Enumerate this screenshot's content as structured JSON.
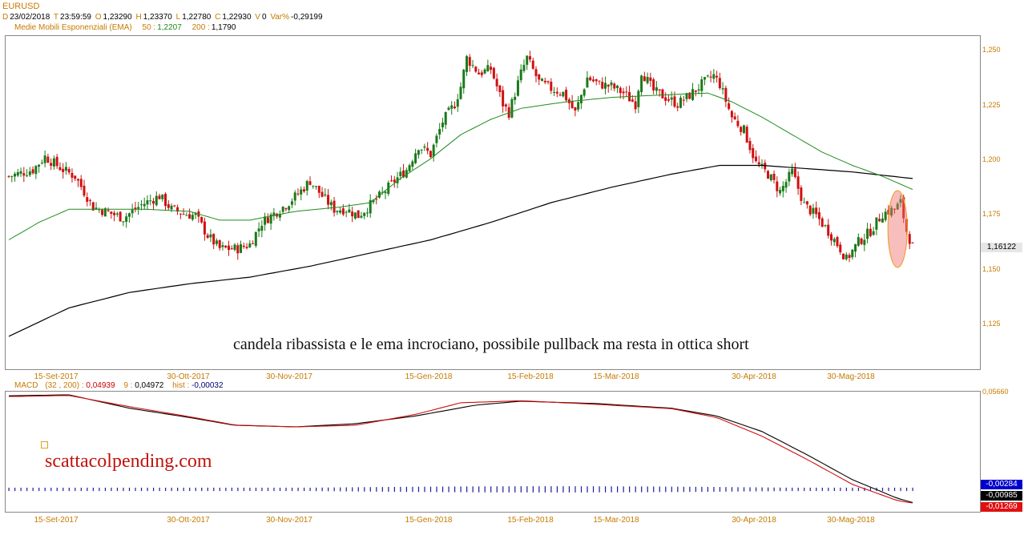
{
  "header": {
    "symbol": "EURUSD",
    "d_label": "D",
    "date": "23/02/2018",
    "t_label": "T",
    "time": "23:59:59",
    "o_label": "O",
    "open": "1,23290",
    "h_label": "H",
    "high": "1,23370",
    "l_label": "L",
    "low": "1,22780",
    "c_label": "C",
    "close": "1,22930",
    "v_label": "V",
    "volume": "0",
    "var_label": "Var%",
    "var": "-0,29199",
    "ema_label": "Medie Mobili Esponenziali (EMA)",
    "ema50_label": "50 :",
    "ema50": "1,2207",
    "ema200_label": "200 :",
    "ema200": "1,1790"
  },
  "annotation": "candela ribassista e le ema incrociano, possibile pullback ma resta in ottica short",
  "watermark": "scattacolpending.com",
  "price_tag": "1,16122",
  "macd_header": {
    "label": "MACD",
    "params": "(32 , 200) :",
    "macd": "0,04939",
    "signal_label": "9 :",
    "signal": "0,04972",
    "hist_label": "hist :",
    "hist": "-0,00032"
  },
  "macd_tags": [
    "-0,00284",
    "-0,00985",
    "-0,01269"
  ],
  "macd_axis_top": "0,05660",
  "x_labels": [
    "15-Set-2017",
    "30-Ott-2017",
    "30-Nov-2017",
    "15-Gen-2018",
    "15-Feb-2018",
    "15-Mar-2018",
    "30-Apr-2018",
    "30-Mag-2018"
  ],
  "colors": {
    "accent": "#c57a00",
    "up": "#1a7a1a",
    "down": "#d01010",
    "ema50": "#1e8c1e",
    "ema200": "#000000",
    "macd": "#000000",
    "signal": "#d01010",
    "hist": "#1a1aa0"
  },
  "chart_data": [
    {
      "type": "candlestick",
      "title": "EURUSD",
      "ylim": [
        1.105,
        1.257
      ],
      "y_ticks": [
        "1,250",
        "1,225",
        "1,200",
        "1,175",
        "1,150",
        "1,125"
      ],
      "x_ticks": [
        "15-Set-2017",
        "30-Ott-2017",
        "30-Nov-2017",
        "15-Gen-2018",
        "15-Feb-2018",
        "15-Mar-2018",
        "30-Apr-2018",
        "30-Mag-2018"
      ],
      "close_path": [
        [
          0,
          1.193
        ],
        [
          8,
          1.196
        ],
        [
          12,
          1.202
        ],
        [
          18,
          1.196
        ],
        [
          22,
          1.193
        ],
        [
          28,
          1.179
        ],
        [
          34,
          1.176
        ],
        [
          38,
          1.174
        ],
        [
          44,
          1.18
        ],
        [
          50,
          1.184
        ],
        [
          54,
          1.178
        ],
        [
          58,
          1.176
        ],
        [
          62,
          1.175
        ],
        [
          66,
          1.166
        ],
        [
          70,
          1.16
        ],
        [
          76,
          1.16
        ],
        [
          80,
          1.162
        ],
        [
          84,
          1.172
        ],
        [
          88,
          1.176
        ],
        [
          92,
          1.18
        ],
        [
          96,
          1.185
        ],
        [
          100,
          1.191
        ],
        [
          104,
          1.184
        ],
        [
          108,
          1.178
        ],
        [
          112,
          1.178
        ],
        [
          116,
          1.175
        ],
        [
          120,
          1.18
        ],
        [
          124,
          1.185
        ],
        [
          128,
          1.191
        ],
        [
          132,
          1.196
        ],
        [
          136,
          1.207
        ],
        [
          140,
          1.203
        ],
        [
          144,
          1.218
        ],
        [
          148,
          1.226
        ],
        [
          150,
          1.234
        ],
        [
          152,
          1.247
        ],
        [
          156,
          1.24
        ],
        [
          160,
          1.242
        ],
        [
          164,
          1.226
        ],
        [
          166,
          1.222
        ],
        [
          170,
          1.24
        ],
        [
          172,
          1.247
        ],
        [
          176,
          1.236
        ],
        [
          180,
          1.233
        ],
        [
          184,
          1.231
        ],
        [
          188,
          1.222
        ],
        [
          192,
          1.238
        ],
        [
          196,
          1.235
        ],
        [
          200,
          1.234
        ],
        [
          204,
          1.231
        ],
        [
          208,
          1.226
        ],
        [
          210,
          1.241
        ],
        [
          214,
          1.232
        ],
        [
          218,
          1.229
        ],
        [
          222,
          1.226
        ],
        [
          226,
          1.23
        ],
        [
          230,
          1.235
        ],
        [
          234,
          1.239
        ],
        [
          236,
          1.235
        ],
        [
          240,
          1.22
        ],
        [
          244,
          1.214
        ],
        [
          248,
          1.199
        ],
        [
          252,
          1.194
        ],
        [
          256,
          1.186
        ],
        [
          260,
          1.195
        ],
        [
          264,
          1.18
        ],
        [
          268,
          1.175
        ],
        [
          272,
          1.168
        ],
        [
          276,
          1.16
        ],
        [
          278,
          1.155
        ],
        [
          282,
          1.163
        ],
        [
          286,
          1.168
        ],
        [
          290,
          1.176
        ],
        [
          294,
          1.178
        ],
        [
          296,
          1.181
        ],
        [
          298,
          1.168
        ],
        [
          300,
          1.161
        ]
      ],
      "ema50_path": [
        [
          0,
          1.164
        ],
        [
          10,
          1.172
        ],
        [
          20,
          1.178
        ],
        [
          30,
          1.178
        ],
        [
          45,
          1.178
        ],
        [
          60,
          1.177
        ],
        [
          70,
          1.173
        ],
        [
          80,
          1.173
        ],
        [
          95,
          1.177
        ],
        [
          110,
          1.179
        ],
        [
          120,
          1.181
        ],
        [
          130,
          1.192
        ],
        [
          140,
          1.201
        ],
        [
          150,
          1.212
        ],
        [
          160,
          1.219
        ],
        [
          170,
          1.224
        ],
        [
          185,
          1.227
        ],
        [
          200,
          1.229
        ],
        [
          215,
          1.23
        ],
        [
          232,
          1.231
        ],
        [
          240,
          1.227
        ],
        [
          250,
          1.22
        ],
        [
          260,
          1.212
        ],
        [
          270,
          1.204
        ],
        [
          280,
          1.198
        ],
        [
          290,
          1.193
        ],
        [
          300,
          1.187
        ]
      ],
      "ema200_path": [
        [
          0,
          1.12
        ],
        [
          20,
          1.133
        ],
        [
          40,
          1.14
        ],
        [
          60,
          1.144
        ],
        [
          80,
          1.147
        ],
        [
          100,
          1.152
        ],
        [
          120,
          1.158
        ],
        [
          140,
          1.164
        ],
        [
          160,
          1.172
        ],
        [
          180,
          1.181
        ],
        [
          200,
          1.188
        ],
        [
          220,
          1.194
        ],
        [
          236,
          1.198
        ],
        [
          250,
          1.198
        ],
        [
          260,
          1.197
        ],
        [
          280,
          1.195
        ],
        [
          300,
          1.192
        ]
      ]
    },
    {
      "type": "line",
      "title": "MACD (32, 200)",
      "ylim": [
        -0.0135,
        0.0566
      ],
      "series": [
        {
          "name": "MACD",
          "values": [
            [
              0,
              0.056
            ],
            [
              20,
              0.0566
            ],
            [
              40,
              0.048
            ],
            [
              60,
              0.042
            ],
            [
              75,
              0.037
            ],
            [
              95,
              0.036
            ],
            [
              115,
              0.038
            ],
            [
              135,
              0.043
            ],
            [
              155,
              0.05
            ],
            [
              170,
              0.0525
            ],
            [
              195,
              0.051
            ],
            [
              220,
              0.048
            ],
            [
              235,
              0.043
            ],
            [
              250,
              0.033
            ],
            [
              265,
              0.018
            ],
            [
              280,
              0.002
            ],
            [
              295,
              -0.01
            ],
            [
              300,
              -0.0127
            ]
          ]
        },
        {
          "name": "9",
          "values": [
            [
              0,
              0.0555
            ],
            [
              20,
              0.0562
            ],
            [
              40,
              0.049
            ],
            [
              60,
              0.0425
            ],
            [
              75,
              0.0372
            ],
            [
              95,
              0.036
            ],
            [
              115,
              0.037
            ],
            [
              135,
              0.044
            ],
            [
              150,
              0.0515
            ],
            [
              170,
              0.0528
            ],
            [
              195,
              0.0505
            ],
            [
              220,
              0.0477
            ],
            [
              235,
              0.042
            ],
            [
              250,
              0.03
            ],
            [
              265,
              0.015
            ],
            [
              280,
              -0.001
            ],
            [
              295,
              -0.0115
            ],
            [
              300,
              -0.013
            ]
          ]
        }
      ],
      "hist_level_range": [
        0.4,
        1.6
      ]
    }
  ]
}
